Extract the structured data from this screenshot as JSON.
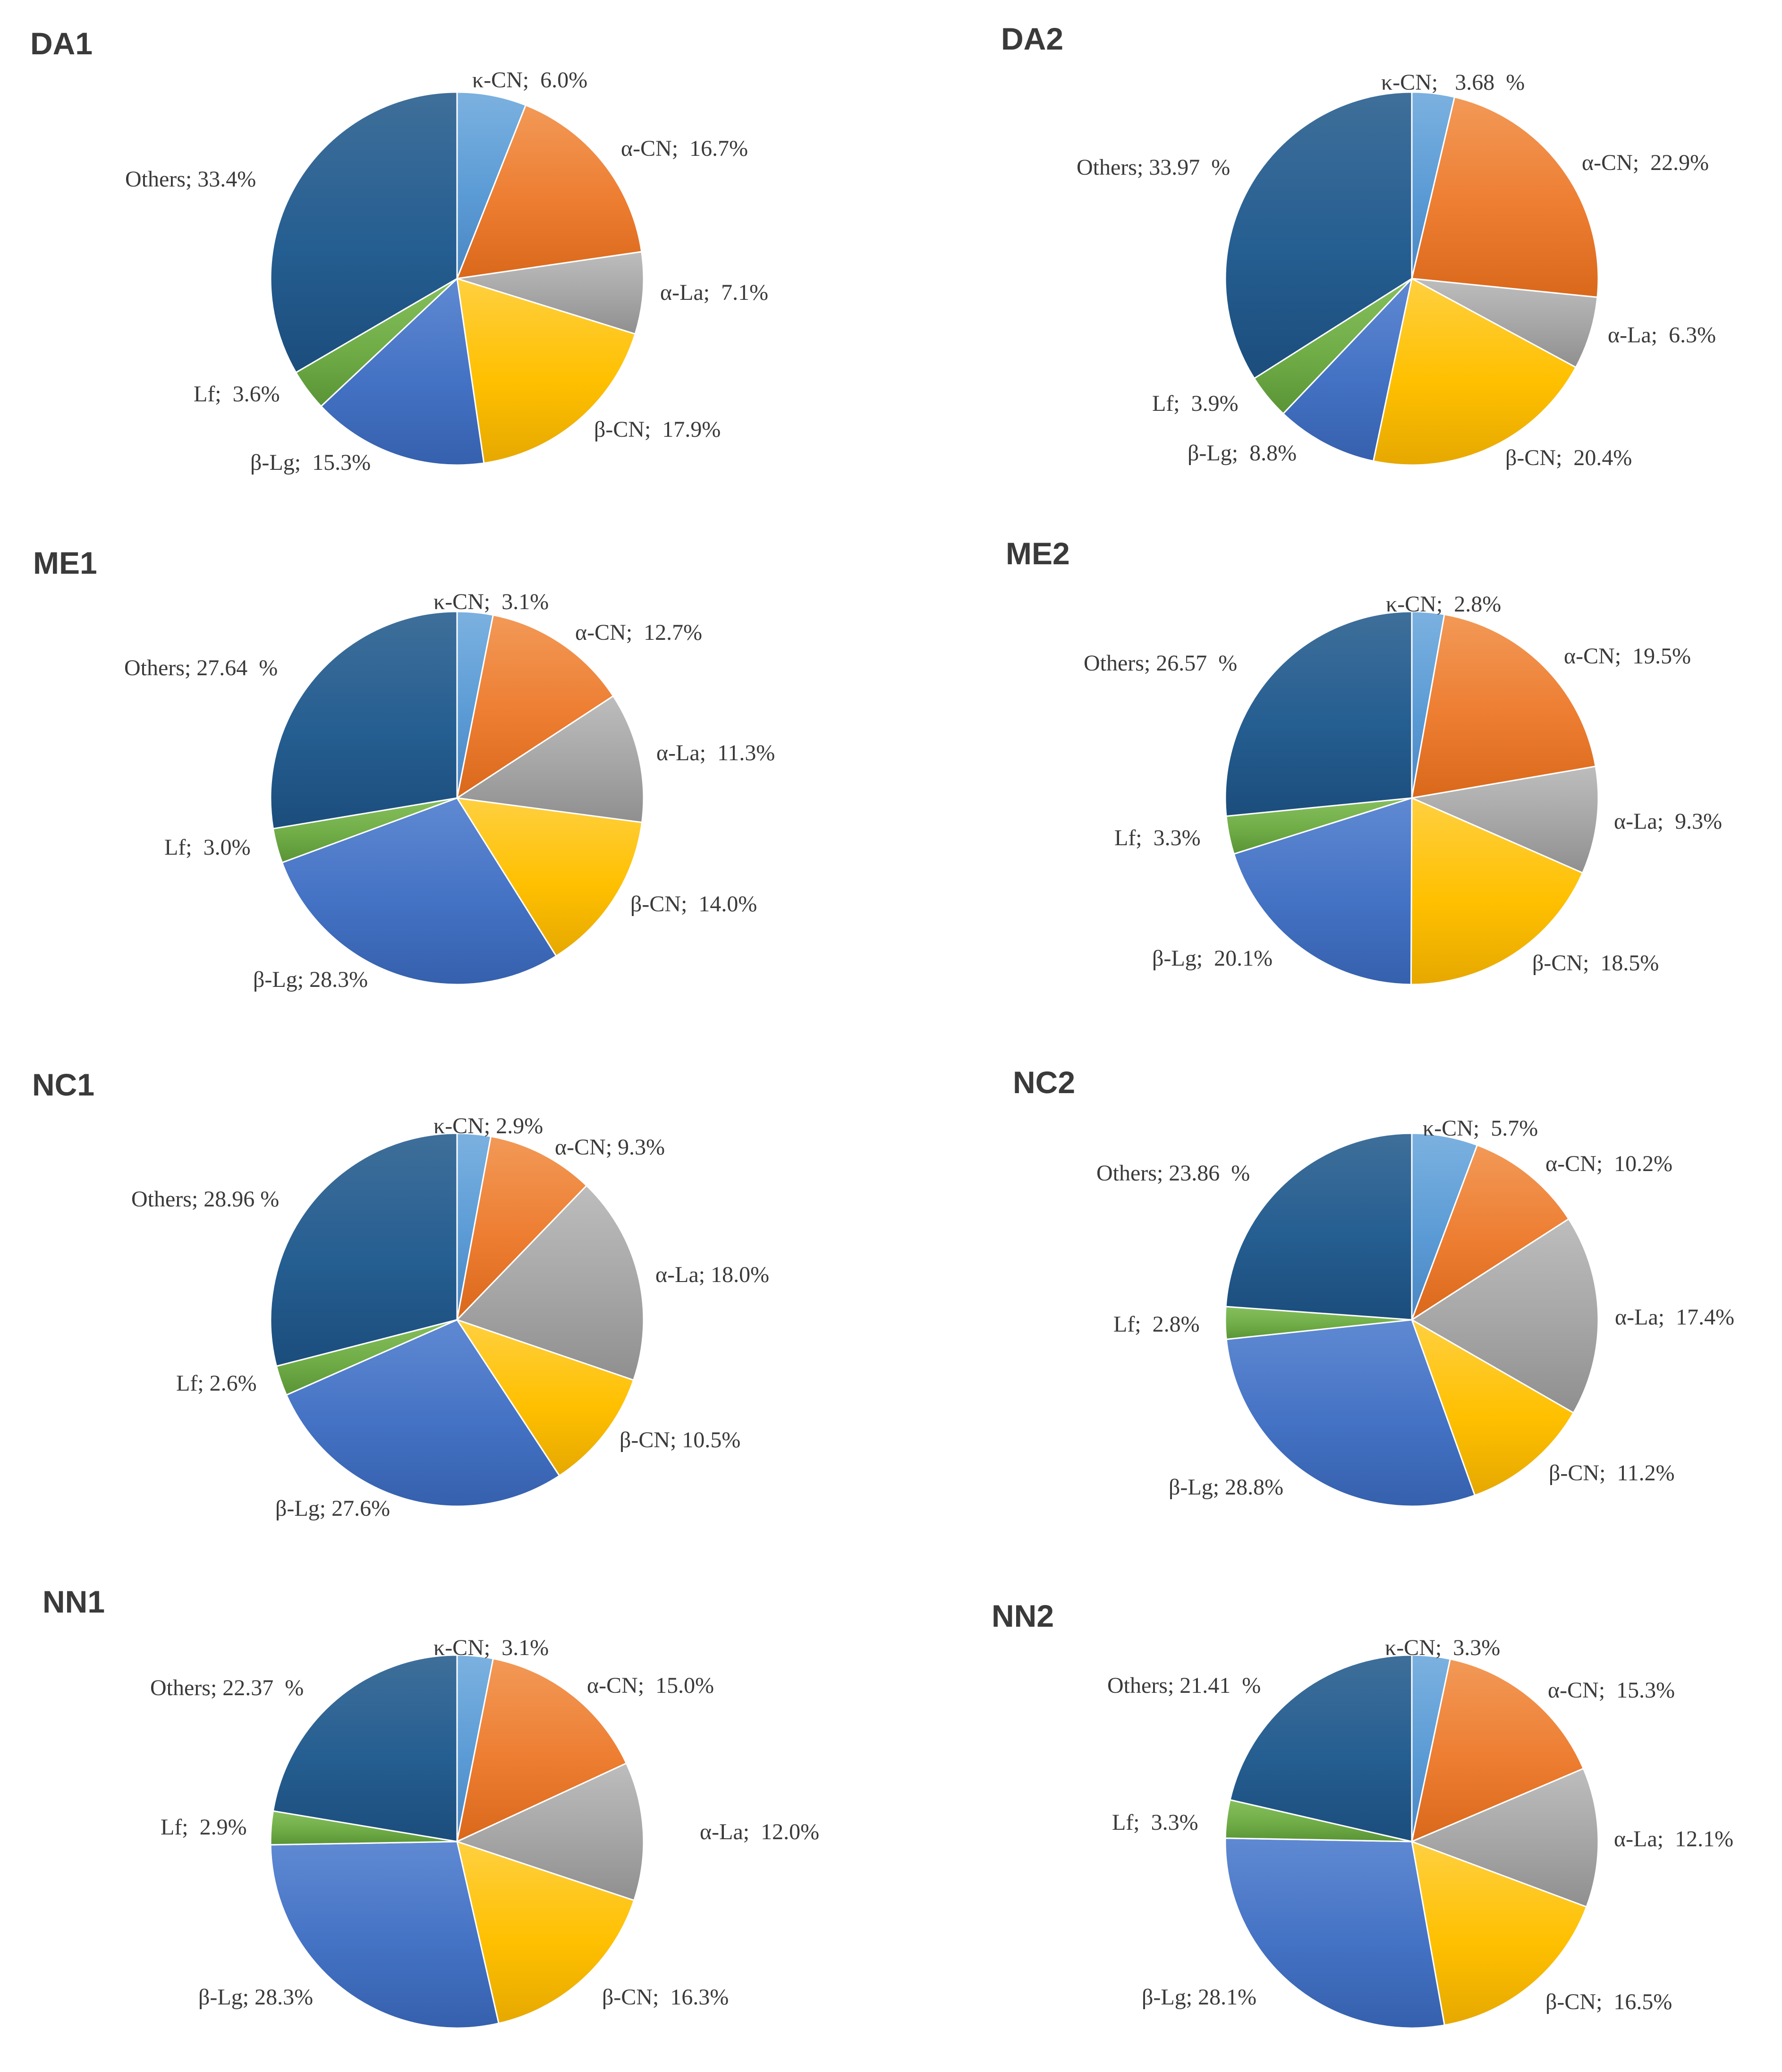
{
  "colors": {
    "kappa_cn": "#5b9bd5",
    "alpha_cn": "#ed7d31",
    "alpha_la": "#a5a5a5",
    "beta_cn": "#ffc000",
    "beta_lg": "#4472c4",
    "lf": "#70ad47",
    "others": "#255e91"
  },
  "chart_data": [
    {
      "type": "pie",
      "title": "DA1",
      "slices": [
        {
          "key": "kappa_cn",
          "value": 6.0,
          "label": "κ-CN;  6.0%"
        },
        {
          "key": "alpha_cn",
          "value": 16.7,
          "label": "α-CN;  16.7%"
        },
        {
          "key": "alpha_la",
          "value": 7.1,
          "label": "α-La;  7.1%"
        },
        {
          "key": "beta_cn",
          "value": 17.9,
          "label": "β-CN;  17.9%"
        },
        {
          "key": "beta_lg",
          "value": 15.3,
          "label": "β-Lg;  15.3%"
        },
        {
          "key": "lf",
          "value": 3.6,
          "label": "Lf;  3.6%"
        },
        {
          "key": "others",
          "value": 33.4,
          "label": "Others; 33.4%"
        }
      ]
    },
    {
      "type": "pie",
      "title": "DA2",
      "slices": [
        {
          "key": "kappa_cn",
          "value": 3.68,
          "label": "κ-CN;   3.68  %"
        },
        {
          "key": "alpha_cn",
          "value": 22.9,
          "label": "α-CN;  22.9%"
        },
        {
          "key": "alpha_la",
          "value": 6.3,
          "label": "α-La;  6.3%"
        },
        {
          "key": "beta_cn",
          "value": 20.4,
          "label": "β-CN;  20.4%"
        },
        {
          "key": "beta_lg",
          "value": 8.8,
          "label": "β-Lg;  8.8%"
        },
        {
          "key": "lf",
          "value": 3.9,
          "label": "Lf;  3.9%"
        },
        {
          "key": "others",
          "value": 33.97,
          "label": "Others; 33.97  %"
        }
      ]
    },
    {
      "type": "pie",
      "title": "ME1",
      "slices": [
        {
          "key": "kappa_cn",
          "value": 3.1,
          "label": "κ-CN;  3.1%"
        },
        {
          "key": "alpha_cn",
          "value": 12.7,
          "label": "α-CN;  12.7%"
        },
        {
          "key": "alpha_la",
          "value": 11.3,
          "label": "α-La;  11.3%"
        },
        {
          "key": "beta_cn",
          "value": 14.0,
          "label": "β-CN;  14.0%"
        },
        {
          "key": "beta_lg",
          "value": 28.3,
          "label": "β-Lg; 28.3%"
        },
        {
          "key": "lf",
          "value": 3.0,
          "label": "Lf;  3.0%"
        },
        {
          "key": "others",
          "value": 27.64,
          "label": "Others; 27.64  %"
        }
      ]
    },
    {
      "type": "pie",
      "title": "ME2",
      "slices": [
        {
          "key": "kappa_cn",
          "value": 2.8,
          "label": "κ-CN;  2.8%"
        },
        {
          "key": "alpha_cn",
          "value": 19.5,
          "label": "α-CN;  19.5%"
        },
        {
          "key": "alpha_la",
          "value": 9.3,
          "label": "α-La;  9.3%"
        },
        {
          "key": "beta_cn",
          "value": 18.5,
          "label": "β-CN;  18.5%"
        },
        {
          "key": "beta_lg",
          "value": 20.1,
          "label": "β-Lg;  20.1%"
        },
        {
          "key": "lf",
          "value": 3.3,
          "label": "Lf;  3.3%"
        },
        {
          "key": "others",
          "value": 26.57,
          "label": "Others; 26.57  %"
        }
      ]
    },
    {
      "type": "pie",
      "title": "NC1",
      "slices": [
        {
          "key": "kappa_cn",
          "value": 2.9,
          "label": "κ-CN; 2.9%"
        },
        {
          "key": "alpha_cn",
          "value": 9.3,
          "label": "α-CN; 9.3%"
        },
        {
          "key": "alpha_la",
          "value": 18.0,
          "label": "α-La; 18.0%"
        },
        {
          "key": "beta_cn",
          "value": 10.5,
          "label": "β-CN; 10.5%"
        },
        {
          "key": "beta_lg",
          "value": 27.6,
          "label": "β-Lg; 27.6%"
        },
        {
          "key": "lf",
          "value": 2.6,
          "label": "Lf; 2.6%"
        },
        {
          "key": "others",
          "value": 28.96,
          "label": "Others; 28.96 %"
        }
      ]
    },
    {
      "type": "pie",
      "title": "NC2",
      "slices": [
        {
          "key": "kappa_cn",
          "value": 5.7,
          "label": "κ-CN;  5.7%"
        },
        {
          "key": "alpha_cn",
          "value": 10.2,
          "label": "α-CN;  10.2%"
        },
        {
          "key": "alpha_la",
          "value": 17.4,
          "label": "α-La;  17.4%"
        },
        {
          "key": "beta_cn",
          "value": 11.2,
          "label": "β-CN;  11.2%"
        },
        {
          "key": "beta_lg",
          "value": 28.8,
          "label": "β-Lg; 28.8%"
        },
        {
          "key": "lf",
          "value": 2.8,
          "label": "Lf;  2.8%"
        },
        {
          "key": "others",
          "value": 23.86,
          "label": "Others; 23.86  %"
        }
      ]
    },
    {
      "type": "pie",
      "title": "NN1",
      "slices": [
        {
          "key": "kappa_cn",
          "value": 3.1,
          "label": "κ-CN;  3.1%"
        },
        {
          "key": "alpha_cn",
          "value": 15.0,
          "label": "α-CN;  15.0%"
        },
        {
          "key": "alpha_la",
          "value": 12.0,
          "label": "α-La;  12.0%"
        },
        {
          "key": "beta_cn",
          "value": 16.3,
          "label": "β-CN;  16.3%"
        },
        {
          "key": "beta_lg",
          "value": 28.3,
          "label": "β-Lg; 28.3%"
        },
        {
          "key": "lf",
          "value": 2.9,
          "label": "Lf;  2.9%"
        },
        {
          "key": "others",
          "value": 22.37,
          "label": "Others; 22.37  %"
        }
      ]
    },
    {
      "type": "pie",
      "title": "NN2",
      "slices": [
        {
          "key": "kappa_cn",
          "value": 3.3,
          "label": "κ-CN;  3.3%"
        },
        {
          "key": "alpha_cn",
          "value": 15.3,
          "label": "α-CN;  15.3%"
        },
        {
          "key": "alpha_la",
          "value": 12.1,
          "label": "α-La;  12.1%"
        },
        {
          "key": "beta_cn",
          "value": 16.5,
          "label": "β-CN;  16.5%"
        },
        {
          "key": "beta_lg",
          "value": 28.1,
          "label": "β-Lg; 28.1%"
        },
        {
          "key": "lf",
          "value": 3.3,
          "label": "Lf;  3.3%"
        },
        {
          "key": "others",
          "value": 21.41,
          "label": "Others; 21.41  %"
        }
      ]
    }
  ]
}
